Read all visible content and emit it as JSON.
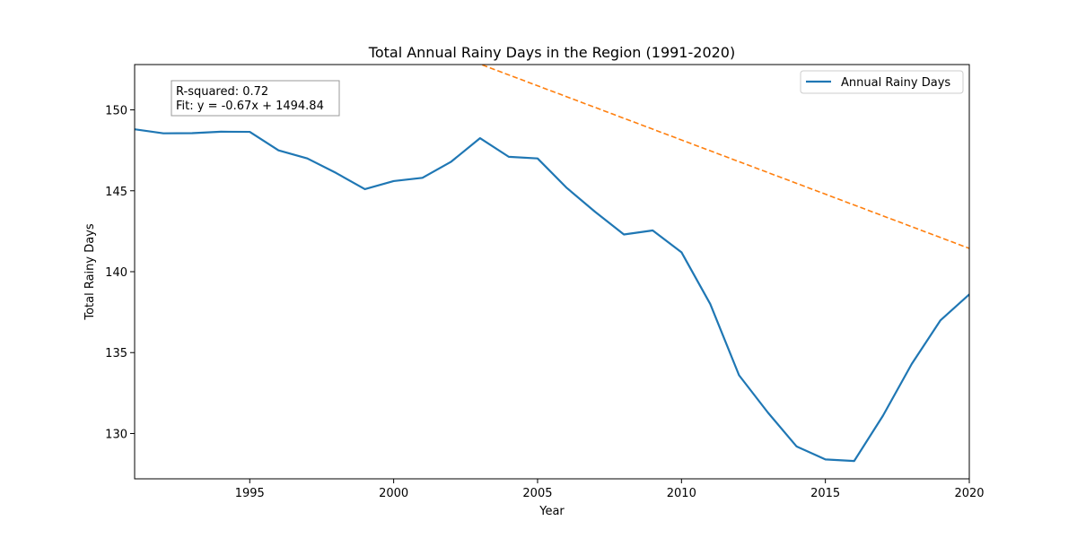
{
  "chart_data": {
    "type": "line",
    "title": "Total Annual Rainy Days in the Region (1991-2020)",
    "xlabel": "Year",
    "ylabel": "Total Rainy Days",
    "xlim": [
      1991,
      2020
    ],
    "ylim": [
      127.2,
      152.8
    ],
    "xticks": [
      1995,
      2000,
      2005,
      2010,
      2015,
      2020
    ],
    "yticks": [
      130,
      135,
      140,
      145,
      150
    ],
    "grid": false,
    "legend": {
      "position": "top-right",
      "entries": [
        "Annual Rainy Days"
      ]
    },
    "series": [
      {
        "name": "Annual Rainy Days",
        "color": "#1f77b4",
        "style": "solid",
        "x": [
          1991,
          1992,
          1993,
          1994,
          1995,
          1996,
          1997,
          1998,
          1999,
          2000,
          2001,
          2002,
          2003,
          2004,
          2005,
          2006,
          2007,
          2008,
          2009,
          2010,
          2011,
          2012,
          2013,
          2014,
          2015,
          2016,
          2017,
          2018,
          2019,
          2020
        ],
        "y": [
          148.8,
          148.55,
          148.56,
          148.65,
          148.64,
          147.5,
          147.0,
          146.1,
          145.1,
          145.6,
          145.8,
          146.8,
          148.25,
          147.1,
          147.0,
          145.2,
          143.7,
          142.3,
          142.55,
          141.2,
          138.0,
          133.6,
          131.3,
          129.2,
          128.4,
          128.3,
          131.1,
          134.3,
          137.0,
          138.6
        ]
      }
    ],
    "trendline": {
      "color": "#ff7f0e",
      "style": "dashed",
      "slope": -0.67,
      "intercept": 1494.84
    },
    "annotation": {
      "lines": [
        "R-squared: 0.72",
        "Fit: y = -0.67x + 1494.84"
      ]
    }
  }
}
